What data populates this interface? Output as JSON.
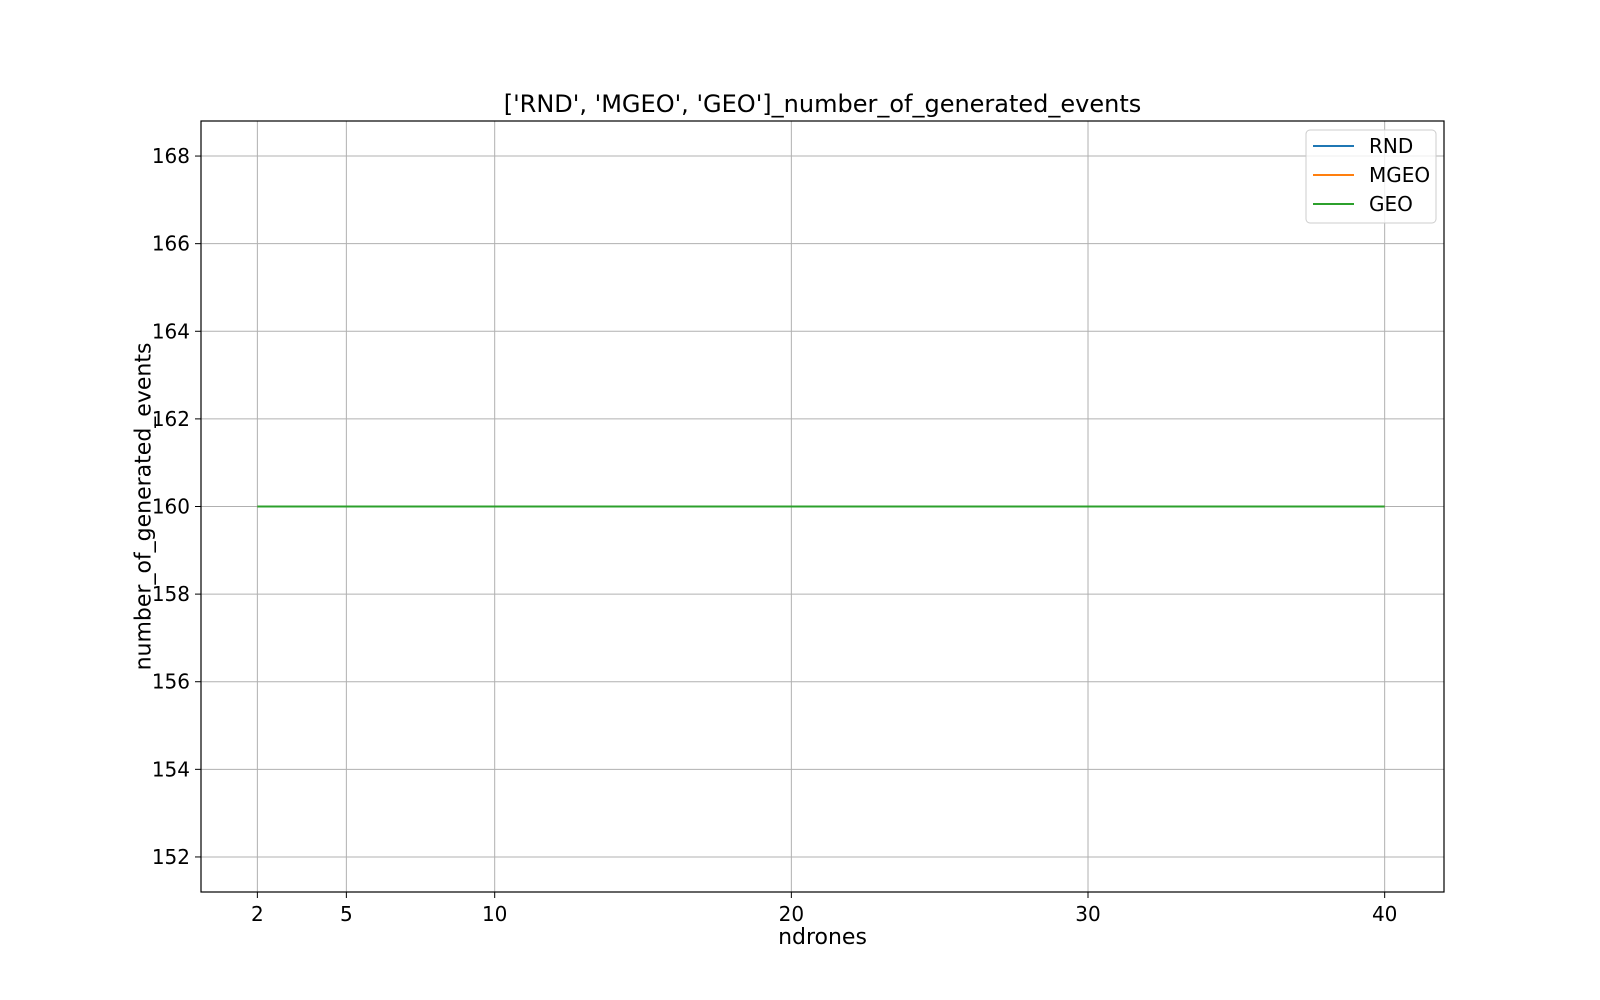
{
  "chart_data": {
    "type": "line",
    "title": "['RND', 'MGEO', 'GEO']_number_of_generated_events",
    "xlabel": "ndrones",
    "ylabel": "number_of_generated_events",
    "x": [
      2,
      5,
      10,
      20,
      30,
      40
    ],
    "xticks": [
      "2",
      "5",
      "10",
      "20",
      "30",
      "40"
    ],
    "xlim": [
      0.1,
      42
    ],
    "ylim": [
      151.2,
      168.8
    ],
    "yticks": [
      "152",
      "154",
      "156",
      "158",
      "160",
      "162",
      "164",
      "166",
      "168"
    ],
    "grid": true,
    "legend_position": "top-right",
    "series": [
      {
        "name": "RND",
        "color": "#1f77b4",
        "values": [
          160,
          160,
          160,
          160,
          160,
          160
        ]
      },
      {
        "name": "MGEO",
        "color": "#ff7f0e",
        "values": [
          160,
          160,
          160,
          160,
          160,
          160
        ]
      },
      {
        "name": "GEO",
        "color": "#2ca02c",
        "values": [
          160,
          160,
          160,
          160,
          160,
          160
        ]
      }
    ]
  }
}
